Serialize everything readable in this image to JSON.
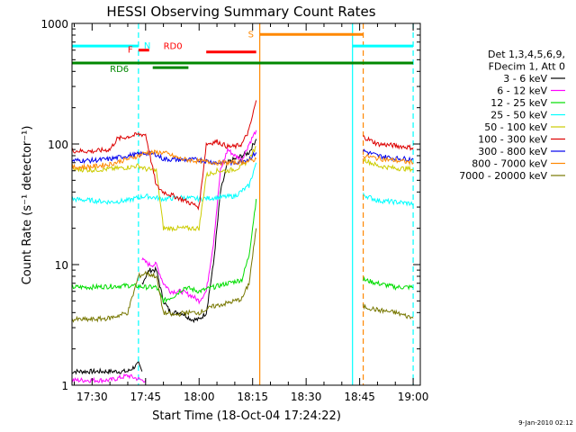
{
  "chart_data": {
    "type": "line",
    "title": "HESSI Observing Summary Count Rates",
    "xlabel": "Start Time (18-Oct-04 17:24:22)",
    "ylabel": "Count Rate (s⁻¹ detector⁻¹)",
    "footer_date": "9-Jan-2010 02:12",
    "y_scale": "log",
    "ylim": [
      1,
      1000
    ],
    "xlim": [
      "17:24:22",
      "19:02"
    ],
    "x_ticks": [
      "17:30",
      "17:45",
      "18:00",
      "18:15",
      "18:30",
      "18:45",
      "19:00"
    ],
    "y_ticks": [
      "1",
      "10",
      "100",
      "1000"
    ],
    "legend": {
      "header_lines": [
        "Det 1,3,4,5,6,9,",
        "FDecim 1, Att 0"
      ],
      "placement": "right"
    },
    "series": [
      {
        "name": "3 - 6 keV",
        "color": "#000000",
        "segments": [
          {
            "x": [
              "17:24",
              "17:35",
              "17:40",
              "17:43",
              "17:44"
            ],
            "y": [
              1.3,
              1.3,
              1.3,
              1.5,
              1.3
            ]
          },
          {
            "x": [
              "17:44",
              "17:46",
              "17:48",
              "17:50",
              "17:52",
              "17:55",
              "17:58",
              "18:00",
              "18:02",
              "18:04",
              "18:06",
              "18:08",
              "18:10",
              "18:12",
              "18:14",
              "18:16"
            ],
            "y": [
              7,
              9,
              9,
              5,
              4,
              4,
              3.5,
              3.5,
              4,
              10,
              40,
              70,
              75,
              80,
              85,
              110
            ]
          }
        ]
      },
      {
        "name": "6 - 12 keV",
        "color": "#ff00ff",
        "segments": [
          {
            "x": [
              "17:24",
              "17:35",
              "17:40",
              "17:44",
              "17:45"
            ],
            "y": [
              1.1,
              1.1,
              1.2,
              1.1,
              1.1
            ]
          },
          {
            "x": [
              "17:44",
              "17:46",
              "17:48",
              "17:50",
              "17:52",
              "17:55",
              "17:58",
              "18:00",
              "18:02",
              "18:04",
              "18:06",
              "18:08",
              "18:10",
              "18:12",
              "18:14",
              "18:16"
            ],
            "y": [
              11,
              10,
              10,
              7,
              6,
              6,
              5.5,
              5,
              6,
              15,
              60,
              90,
              80,
              75,
              100,
              130
            ]
          }
        ]
      },
      {
        "name": "12 - 25 keV",
        "color": "#00dd00",
        "segments": [
          {
            "x": [
              "17:24",
              "17:30",
              "17:35",
              "17:40",
              "17:43",
              "17:45",
              "17:48",
              "17:50",
              "17:53",
              "17:56",
              "18:00",
              "18:04",
              "18:08",
              "18:12",
              "18:14",
              "18:16"
            ],
            "y": [
              6.5,
              6.5,
              6.6,
              6.7,
              6.6,
              6.5,
              6.5,
              5,
              5.5,
              6.5,
              6,
              6.5,
              7,
              7.5,
              12,
              35
            ]
          },
          {
            "x": [
              "18:46",
              "18:50",
              "18:55",
              "19:00"
            ],
            "y": [
              7.5,
              7,
              6.5,
              6.5
            ]
          }
        ]
      },
      {
        "name": "25 - 50 keV",
        "color": "#00ffff",
        "segments": [
          {
            "x": [
              "17:24",
              "17:30",
              "17:35",
              "17:40",
              "17:43",
              "17:45",
              "17:50",
              "17:55",
              "18:00",
              "18:05",
              "18:10",
              "18:14",
              "18:16"
            ],
            "y": [
              35,
              34,
              33,
              34,
              36,
              37,
              35,
              36,
              35,
              36,
              37,
              45,
              70
            ]
          },
          {
            "x": [
              "18:46",
              "18:50",
              "18:55",
              "19:00"
            ],
            "y": [
              38,
              34,
              33,
              32
            ]
          }
        ]
      },
      {
        "name": "50 - 100 keV",
        "color": "#cccc00",
        "segments": [
          {
            "x": [
              "17:24",
              "17:30",
              "17:35",
              "17:40",
              "17:43",
              "17:45",
              "17:48",
              "17:50",
              "17:55",
              "17:58",
              "18:00",
              "18:02",
              "18:05",
              "18:08",
              "18:10",
              "18:12",
              "18:14",
              "18:16"
            ],
            "y": [
              62,
              61,
              62,
              64,
              66,
              62,
              60,
              20,
              20,
              20,
              20,
              55,
              60,
              60,
              62,
              65,
              75,
              95
            ]
          },
          {
            "x": [
              "18:46",
              "18:50",
              "18:55",
              "19:00"
            ],
            "y": [
              75,
              66,
              63,
              62
            ]
          }
        ]
      },
      {
        "name": "100 - 300 keV",
        "color": "#dd0000",
        "segments": [
          {
            "x": [
              "17:24",
              "17:30",
              "17:35",
              "17:37",
              "17:40",
              "17:43",
              "17:45",
              "17:48",
              "17:50",
              "17:55",
              "18:00",
              "18:02",
              "18:05",
              "18:08",
              "18:10",
              "18:12",
              "18:14",
              "18:16"
            ],
            "y": [
              88,
              87,
              90,
              110,
              115,
              120,
              120,
              45,
              40,
              35,
              30,
              100,
              105,
              95,
              95,
              100,
              130,
              230
            ]
          },
          {
            "x": [
              "18:46",
              "18:50",
              "18:55",
              "19:00"
            ],
            "y": [
              115,
              100,
              97,
              93
            ]
          }
        ]
      },
      {
        "name": "300 - 800 keV",
        "color": "#0000ee",
        "segments": [
          {
            "x": [
              "17:24",
              "17:30",
              "17:35",
              "17:40",
              "17:43",
              "17:45",
              "17:48",
              "17:50",
              "17:55",
              "18:00",
              "18:05",
              "18:10",
              "18:14",
              "18:16"
            ],
            "y": [
              73,
              73,
              75,
              80,
              82,
              84,
              82,
              75,
              74,
              74,
              70,
              70,
              75,
              85
            ]
          },
          {
            "x": [
              "18:46",
              "18:50",
              "18:55",
              "19:00"
            ],
            "y": [
              88,
              80,
              76,
              75
            ]
          }
        ]
      },
      {
        "name": "800 - 7000 keV",
        "color": "#ff8800",
        "segments": [
          {
            "x": [
              "17:24",
              "17:30",
              "17:35",
              "17:40",
              "17:43",
              "17:45",
              "17:50",
              "17:55",
              "18:00",
              "18:05",
              "18:10",
              "18:14",
              "18:16"
            ],
            "y": [
              64,
              65,
              68,
              75,
              80,
              85,
              85,
              75,
              72,
              70,
              70,
              72,
              75
            ]
          },
          {
            "x": [
              "18:46",
              "18:50",
              "18:55",
              "19:00"
            ],
            "y": [
              80,
              76,
              73,
              70
            ]
          }
        ]
      },
      {
        "name": "7000 - 20000 keV",
        "color": "#777700",
        "segments": [
          {
            "x": [
              "17:24",
              "17:30",
              "17:35",
              "17:40",
              "17:43",
              "17:45",
              "17:48",
              "17:50",
              "17:53",
              "17:56",
              "18:00",
              "18:04",
              "18:08",
              "18:12",
              "18:14",
              "18:16"
            ],
            "y": [
              3.5,
              3.5,
              3.6,
              4,
              8,
              8.5,
              8,
              4,
              3.8,
              4,
              4,
              4.5,
              4.8,
              5.2,
              7,
              20
            ]
          },
          {
            "x": [
              "18:46",
              "18:50",
              "18:55",
              "19:00"
            ],
            "y": [
              4.5,
              4.2,
              4,
              3.6
            ]
          }
        ]
      }
    ],
    "flags": [
      {
        "label": "N",
        "color": "#00ffff",
        "y_level": 650,
        "ranges": [
          [
            "17:24",
            "17:43"
          ],
          [
            "18:43",
            "19:00"
          ]
        ]
      },
      {
        "label": "F",
        "color": "#ff0000",
        "y_level": 600,
        "ranges": [
          [
            "17:43",
            "17:46"
          ]
        ]
      },
      {
        "label": "RD0",
        "color": "#ff0000",
        "y_level": 580,
        "ranges": [
          [
            "18:02",
            "18:16"
          ]
        ]
      },
      {
        "label": "RD6",
        "color": "#008800",
        "y_level": 470,
        "ranges": [
          [
            "17:24",
            "19:00"
          ]
        ]
      },
      {
        "label": "",
        "color": "#008800",
        "y_level": 430,
        "ranges": [
          [
            "17:47",
            "17:57"
          ]
        ]
      },
      {
        "label": "S",
        "color": "#ff8800",
        "y_level": 810,
        "ranges": [
          [
            "18:17",
            "18:46"
          ]
        ]
      }
    ],
    "vertical_markers": [
      {
        "x": "17:43",
        "color": "#00ffff",
        "style": "dashed"
      },
      {
        "x": "18:17",
        "color": "#ff8800",
        "style": "solid"
      },
      {
        "x": "18:43",
        "color": "#00ffff",
        "style": "solid"
      },
      {
        "x": "18:46",
        "color": "#ff8800",
        "style": "dashed"
      },
      {
        "x": "19:00",
        "color": "#00ffff",
        "style": "dashed"
      }
    ]
  }
}
